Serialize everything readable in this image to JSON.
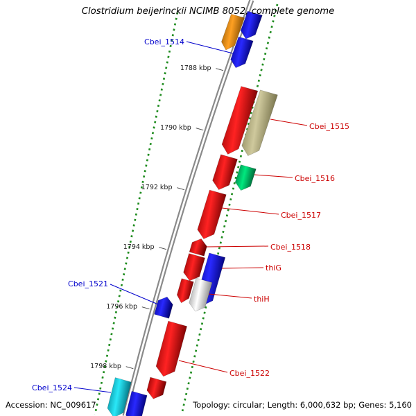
{
  "title": "Clostridium beijerinckii NCIMB 8052, complete genome",
  "footer": {
    "accession": "Accession: NC_009617",
    "stats": "Topology: circular; Length: 6,000,632 bp; Genes: 5,160"
  },
  "ruler": {
    "unit": "kbp",
    "ticks": [
      {
        "label": "1788 kbp",
        "kbp": 1788
      },
      {
        "label": "1790 kbp",
        "kbp": 1790
      },
      {
        "label": "1792 kbp",
        "kbp": 1792
      },
      {
        "label": "1794 kbp",
        "kbp": 1794
      },
      {
        "label": "1796 kbp",
        "kbp": 1796
      },
      {
        "label": "1798 kbp",
        "kbp": 1798
      }
    ]
  },
  "colors": {
    "backbone": "#8a8a8a",
    "ruler_dots": "#1f8c1f",
    "label_blue": "#0000cc",
    "label_red": "#cc0000"
  },
  "features": [
    {
      "id": "cds-orange-a",
      "name": "",
      "color": "orange",
      "start_kbp": 1786.21,
      "end_kbp": 1787.35,
      "o1": -21,
      "o2": -1,
      "dir": "down",
      "hl": 9
    },
    {
      "id": "cds-blue-a",
      "name": "",
      "color": "blue",
      "start_kbp": 1785.98,
      "end_kbp": 1786.84,
      "o1": 0,
      "o2": 22,
      "dir": "down",
      "hl": 9
    },
    {
      "id": "Cbei_1514",
      "name": "Cbei_1514",
      "color": "blue",
      "start_kbp": 1786.84,
      "end_kbp": 1787.81,
      "o1": 0,
      "o2": 22,
      "dir": "down",
      "hl": 9
    },
    {
      "id": "cds-red-a",
      "name": "",
      "color": "red",
      "start_kbp": 1788.33,
      "end_kbp": 1790.53,
      "o1": 27,
      "o2": 52,
      "dir": "down",
      "hl": 11
    },
    {
      "id": "Cbei_1515",
      "name": "Cbei_1515",
      "color": "tan",
      "start_kbp": 1788.28,
      "end_kbp": 1790.4,
      "o1": 55,
      "o2": 81,
      "dir": "down",
      "hl": 11
    },
    {
      "id": "cds-red-b",
      "name": "",
      "color": "red",
      "start_kbp": 1790.6,
      "end_kbp": 1791.7,
      "o1": 30,
      "o2": 55,
      "dir": "down",
      "hl": 10
    },
    {
      "id": "Cbei_1516",
      "name": "Cbei_1516",
      "color": "green",
      "start_kbp": 1790.74,
      "end_kbp": 1791.53,
      "o1": 62,
      "o2": 85,
      "dir": "down",
      "hl": 9
    },
    {
      "id": "Cbei_1517",
      "name": "Cbei_1517",
      "color": "red",
      "start_kbp": 1791.79,
      "end_kbp": 1793.35,
      "o1": 30,
      "o2": 55,
      "dir": "down",
      "hl": 10
    },
    {
      "id": "Cbei_1518",
      "name": "Cbei_1518",
      "color": "red",
      "start_kbp": 1793.37,
      "end_kbp": 1793.88,
      "o1": 28,
      "o2": 50,
      "dir": "up",
      "hl": 8
    },
    {
      "id": "cds-red-c",
      "name": "",
      "color": "red",
      "start_kbp": 1793.93,
      "end_kbp": 1794.77,
      "o1": 28,
      "o2": 52,
      "dir": "down",
      "hl": 9
    },
    {
      "id": "cds-red-d",
      "name": "",
      "color": "red",
      "start_kbp": 1794.77,
      "end_kbp": 1795.53,
      "o1": 28,
      "o2": 46,
      "dir": "down",
      "hl": 9
    },
    {
      "id": "thiG",
      "name": "thiG",
      "color": "blue",
      "start_kbp": 1793.74,
      "end_kbp": 1795.42,
      "o1": 56,
      "o2": 80,
      "dir": "down",
      "hl": 10
    },
    {
      "id": "thiH",
      "name": "thiH",
      "color": "white",
      "start_kbp": 1794.63,
      "end_kbp": 1795.67,
      "o1": 48,
      "o2": 72,
      "dir": "down",
      "hl": 9
    },
    {
      "id": "Cbei_1521",
      "name": "Cbei_1521",
      "color": "blue",
      "start_kbp": 1795.47,
      "end_kbp": 1796.12,
      "o1": 4,
      "o2": 26,
      "dir": "up",
      "hl": 8
    },
    {
      "id": "Cbei_1522",
      "name": "Cbei_1522",
      "color": "red",
      "start_kbp": 1796.21,
      "end_kbp": 1797.98,
      "o1": 26,
      "o2": 54,
      "dir": "down",
      "hl": 11
    },
    {
      "id": "cds-red-e",
      "name": "",
      "color": "red",
      "start_kbp": 1798.12,
      "end_kbp": 1798.77,
      "o1": 22,
      "o2": 46,
      "dir": "down",
      "hl": 9
    },
    {
      "id": "Cbei_1524",
      "name": "Cbei_1524",
      "color": "cyan",
      "start_kbp": 1798.44,
      "end_kbp": 1799.7,
      "o1": -27,
      "o2": -3,
      "dir": "down",
      "hl": 10
    },
    {
      "id": "cds-blue-b",
      "name": "",
      "color": "blue",
      "start_kbp": 1798.72,
      "end_kbp": 1799.74,
      "o1": 1,
      "o2": 24,
      "dir": "down",
      "hl": 10
    }
  ],
  "labels": [
    {
      "text": "Cbei_1514",
      "target": "Cbei_1514",
      "color": "blue"
    },
    {
      "text": "Cbei_1515",
      "target": "Cbei_1515",
      "color": "red"
    },
    {
      "text": "Cbei_1516",
      "target": "Cbei_1516",
      "color": "red"
    },
    {
      "text": "Cbei_1517",
      "target": "Cbei_1517",
      "color": "red"
    },
    {
      "text": "Cbei_1518",
      "target": "Cbei_1518",
      "color": "red"
    },
    {
      "text": "thiG",
      "target": "thiG",
      "color": "red"
    },
    {
      "text": "thiH",
      "target": "thiH",
      "color": "red"
    },
    {
      "text": "Cbei_1521",
      "target": "Cbei_1521",
      "color": "blue"
    },
    {
      "text": "Cbei_1522",
      "target": "Cbei_1522",
      "color": "red"
    },
    {
      "text": "Cbei_1524",
      "target": "Cbei_1524",
      "color": "blue"
    }
  ]
}
